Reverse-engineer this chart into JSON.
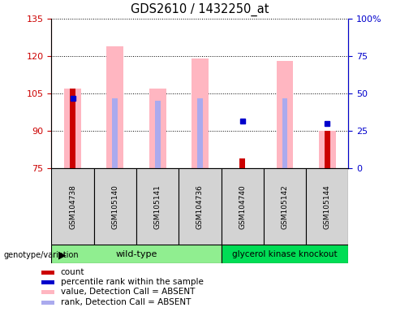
{
  "title": "GDS2610 / 1432250_at",
  "samples": [
    "GSM104738",
    "GSM105140",
    "GSM105141",
    "GSM104736",
    "GSM104740",
    "GSM105142",
    "GSM105144"
  ],
  "ylim_left": [
    75,
    135
  ],
  "ylim_right": [
    0,
    100
  ],
  "yticks_left": [
    75,
    90,
    105,
    120,
    135
  ],
  "yticks_right": [
    0,
    25,
    50,
    75,
    100
  ],
  "count_values": [
    107,
    null,
    null,
    null,
    79,
    null,
    90
  ],
  "count_baseline": 75,
  "rank_values": [
    103,
    null,
    null,
    null,
    94,
    null,
    93
  ],
  "pink_bar_bottom": [
    75,
    75,
    75,
    75,
    null,
    75,
    75
  ],
  "pink_bar_top": [
    107,
    124,
    107,
    119,
    null,
    118,
    90
  ],
  "lavender_bar_bottom": [
    75,
    75,
    75,
    75,
    null,
    75,
    null
  ],
  "lavender_bar_top": [
    103,
    103,
    102,
    103,
    null,
    103,
    null
  ],
  "background_color": "#ffffff",
  "left_color": "#CC0000",
  "right_color": "#0000CC",
  "pink_color": "#FFB6C1",
  "lavender_color": "#AAAAEE",
  "count_color": "#CC0000",
  "rank_color": "#0000CC",
  "wt_color": "#90EE90",
  "gk_color": "#00DD55",
  "cell_color": "#D3D3D3",
  "wt_samples": 4,
  "gk_samples": 3
}
